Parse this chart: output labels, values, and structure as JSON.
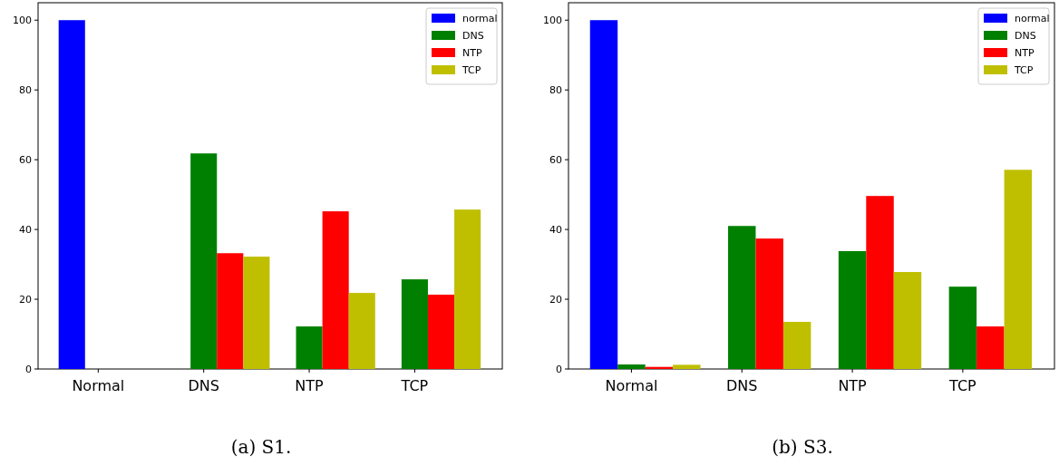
{
  "chart_data": [
    {
      "type": "bar",
      "title": "(a) S1.",
      "categories": [
        "Normal",
        "DNS",
        "NTP",
        "TCP"
      ],
      "ylim": [
        0,
        105
      ],
      "yticks": [
        0,
        20,
        40,
        60,
        80,
        100
      ],
      "grid": false,
      "legend": "top right",
      "series": [
        {
          "name": "normal",
          "color": "#0000ff",
          "values": [
            100,
            0,
            0,
            0
          ]
        },
        {
          "name": "DNS",
          "color": "#008000",
          "values": [
            0,
            61.8,
            12.2,
            25.7
          ]
        },
        {
          "name": "NTP",
          "color": "#ff0000",
          "values": [
            0,
            33.2,
            45.2,
            21.3
          ]
        },
        {
          "name": "TCP",
          "color": "#bfbf00",
          "values": [
            0,
            32.2,
            21.8,
            45.7
          ]
        }
      ]
    },
    {
      "type": "bar",
      "title": "(b) S3.",
      "categories": [
        "Normal",
        "DNS",
        "NTP",
        "TCP"
      ],
      "ylim": [
        0,
        105
      ],
      "yticks": [
        0,
        20,
        40,
        60,
        80,
        100
      ],
      "grid": false,
      "legend": "top right",
      "series": [
        {
          "name": "normal",
          "color": "#0000ff",
          "values": [
            100,
            0,
            0,
            0
          ]
        },
        {
          "name": "DNS",
          "color": "#008000",
          "values": [
            1.3,
            41.0,
            33.8,
            23.6
          ]
        },
        {
          "name": "NTP",
          "color": "#ff0000",
          "values": [
            0.6,
            37.4,
            49.6,
            12.2
          ]
        },
        {
          "name": "TCP",
          "color": "#bfbf00",
          "values": [
            1.2,
            13.5,
            27.8,
            57.1
          ]
        }
      ]
    }
  ]
}
